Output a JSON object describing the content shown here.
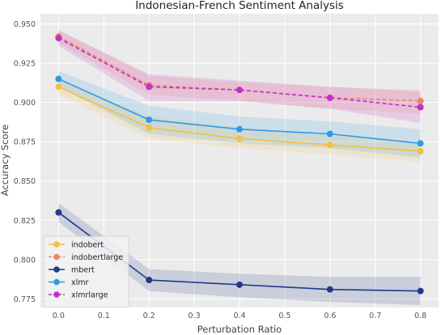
{
  "chart_data": {
    "type": "line",
    "title": "Indonesian-French Sentiment Analysis",
    "xlabel": "Perturbation Ratio",
    "ylabel": "Accuracy Score",
    "x": [
      0.0,
      0.2,
      0.4,
      0.6,
      0.8
    ],
    "xlim": [
      -0.04,
      0.84
    ],
    "ylim": [
      0.7695,
      0.9565
    ],
    "xticks": [
      "0.0",
      "0.1",
      "0.2",
      "0.3",
      "0.4",
      "0.5",
      "0.6",
      "0.7",
      "0.8"
    ],
    "yticks": [
      "0.775",
      "0.800",
      "0.825",
      "0.850",
      "0.875",
      "0.900",
      "0.925",
      "0.950"
    ],
    "grid": true,
    "legend_position": "lower-left",
    "series": [
      {
        "name": "indobert",
        "color": "#f3c13a",
        "dashed": false,
        "values": [
          0.91,
          0.884,
          0.877,
          0.873,
          0.869
        ],
        "lower": [
          0.905,
          0.877,
          0.871,
          0.867,
          0.862
        ],
        "upper": [
          0.915,
          0.891,
          0.884,
          0.879,
          0.875
        ]
      },
      {
        "name": "indobertlarge",
        "color": "#f2836b",
        "dashed": true,
        "values": [
          0.942,
          0.911,
          0.908,
          0.903,
          0.901
        ],
        "lower": [
          0.938,
          0.905,
          0.901,
          0.896,
          0.893
        ],
        "upper": [
          0.946,
          0.917,
          0.913,
          0.91,
          0.908
        ]
      },
      {
        "name": "mbert",
        "color": "#1f3a8a",
        "dashed": false,
        "values": [
          0.83,
          0.787,
          0.784,
          0.781,
          0.78
        ],
        "lower": [
          0.824,
          0.78,
          0.776,
          0.773,
          0.771
        ],
        "upper": [
          0.836,
          0.794,
          0.791,
          0.789,
          0.789
        ]
      },
      {
        "name": "xlmr",
        "color": "#2e9be6",
        "dashed": false,
        "values": [
          0.915,
          0.889,
          0.883,
          0.88,
          0.874
        ],
        "lower": [
          0.91,
          0.88,
          0.874,
          0.871,
          0.865
        ],
        "upper": [
          0.92,
          0.898,
          0.891,
          0.888,
          0.883
        ]
      },
      {
        "name": "xlmrlarge",
        "color": "#c42fc7",
        "dashed": true,
        "values": [
          0.941,
          0.91,
          0.908,
          0.903,
          0.897
        ],
        "lower": [
          0.936,
          0.901,
          0.901,
          0.896,
          0.887
        ],
        "upper": [
          0.946,
          0.918,
          0.914,
          0.91,
          0.907
        ]
      }
    ]
  }
}
